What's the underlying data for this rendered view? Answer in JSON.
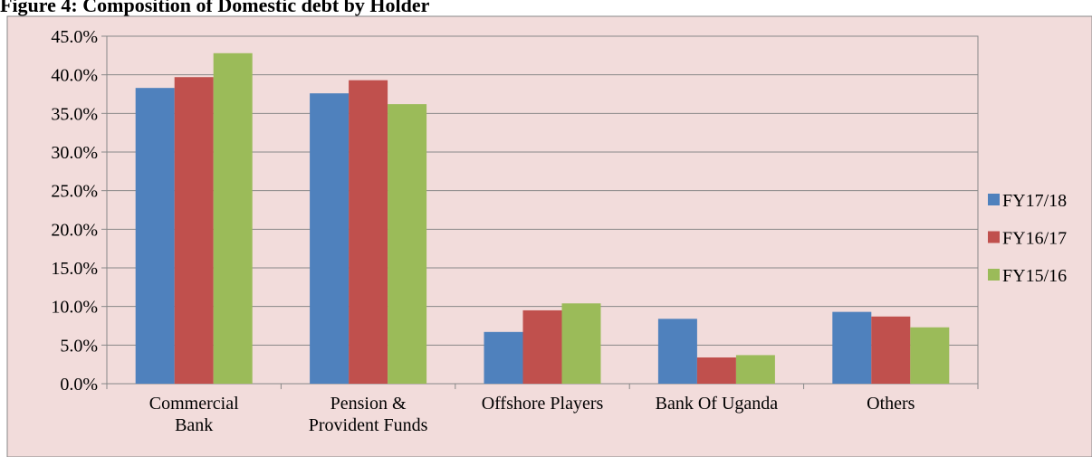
{
  "chart_data": {
    "type": "bar",
    "title": "Figure 4: Composition of Domestic debt by Holder",
    "categories": [
      "Commercial\nBank",
      "Pension &\nProvident Funds",
      "Offshore Players",
      "Bank Of Uganda",
      "Others"
    ],
    "series": [
      {
        "name": "FY17/18",
        "color": "#4f81bd",
        "values": [
          38.3,
          37.6,
          6.7,
          8.4,
          9.3
        ]
      },
      {
        "name": "FY16/17",
        "color": "#c0504d",
        "values": [
          39.7,
          39.3,
          9.5,
          3.4,
          8.7
        ]
      },
      {
        "name": "FY15/16",
        "color": "#9bbb59",
        "values": [
          42.8,
          36.2,
          10.4,
          3.7,
          7.3
        ]
      }
    ],
    "ylim": [
      0,
      45
    ],
    "yticks": [
      {
        "value": 0,
        "label": "0.0%"
      },
      {
        "value": 5,
        "label": "5.0%"
      },
      {
        "value": 10,
        "label": "10.0%"
      },
      {
        "value": 15,
        "label": "15.0%"
      },
      {
        "value": 20,
        "label": "20.0%"
      },
      {
        "value": 25,
        "label": "25.0%"
      },
      {
        "value": 30,
        "label": "30.0%"
      },
      {
        "value": 35,
        "label": "35.0%"
      },
      {
        "value": 40,
        "label": "40.0%"
      },
      {
        "value": 45,
        "label": "45.0%"
      }
    ],
    "grid": true,
    "legend": "right"
  }
}
